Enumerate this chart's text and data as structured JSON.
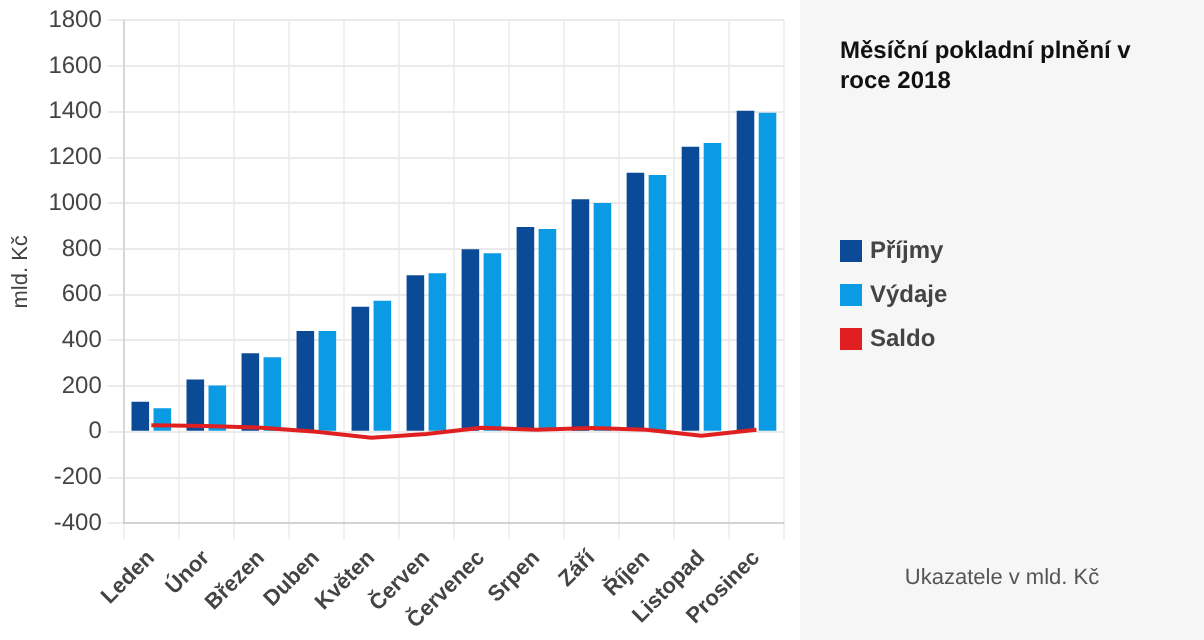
{
  "chart_data": {
    "type": "bar",
    "title": "Měsíční pokladní plnění v roce 2018",
    "ylabel": "mld. Kč",
    "annotations": [
      "Ukazatele v mld. Kč"
    ],
    "categories": [
      "Leden",
      "Únor",
      "Březen",
      "Duben",
      "Květen",
      "Červen",
      "Červenec",
      "Srpen",
      "Září",
      "Říjen",
      "Listopad",
      "Prosinec"
    ],
    "series": [
      {
        "name": "Příjmy",
        "color": "#0b4a96",
        "values": [
          132,
          229,
          344,
          441,
          547,
          685,
          799,
          896,
          1018,
          1133,
          1247,
          1405
        ]
      },
      {
        "name": "Výdaje",
        "color": "#0a9be4",
        "values": [
          103,
          203,
          326,
          441,
          573,
          694,
          781,
          887,
          1001,
          1124,
          1264,
          1396
        ]
      },
      {
        "name": "Saldo",
        "type": "line",
        "color": "#e02020",
        "values": [
          29,
          26,
          18,
          0,
          -26,
          -9,
          18,
          9,
          17,
          9,
          -17,
          9
        ]
      }
    ],
    "ylim": [
      -400,
      1800
    ],
    "yticks": [
      -400,
      -200,
      0,
      200,
      400,
      600,
      800,
      1000,
      1200,
      1400,
      1600,
      1800
    ],
    "grid": true,
    "legend": "right",
    "marker": "none"
  }
}
